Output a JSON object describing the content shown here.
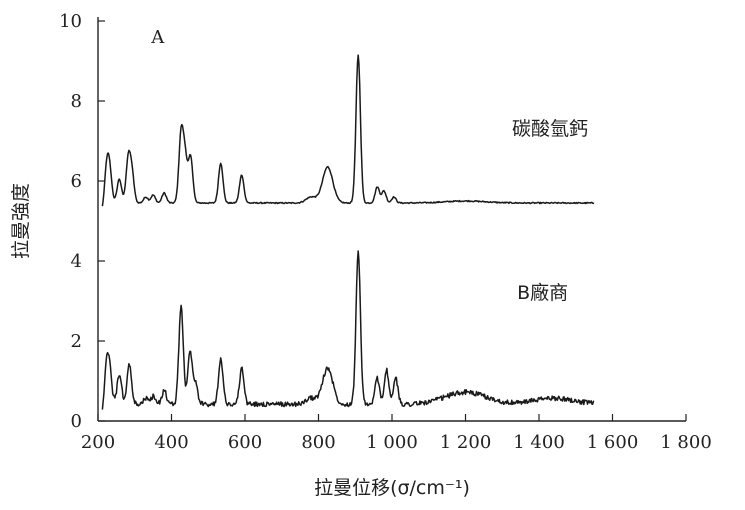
{
  "chart_data": {
    "type": "line",
    "panel_label": "A",
    "xlabel": "拉曼位移(σ/cm⁻¹)",
    "ylabel": "拉曼強度",
    "xlim": [
      200,
      1800
    ],
    "ylim": [
      0,
      10
    ],
    "x_tick_labels": [
      "200",
      "400",
      "600",
      "800",
      "1 000",
      "1 200",
      "1 400",
      "1 600",
      "1 800"
    ],
    "x_tick_values": [
      200,
      400,
      600,
      800,
      1000,
      1200,
      1400,
      1600,
      1800
    ],
    "y_ticks": [
      0,
      2,
      4,
      6,
      8,
      10
    ],
    "series": [
      {
        "name": "碳酸氫鈣",
        "baseline": 5.45,
        "peaks": [
          {
            "x": 224,
            "h": 0.85
          },
          {
            "x": 232,
            "h": 0.7
          },
          {
            "x": 258,
            "h": 0.6
          },
          {
            "x": 282,
            "h": 1.05
          },
          {
            "x": 292,
            "h": 0.75
          },
          {
            "x": 330,
            "h": 0.15
          },
          {
            "x": 350,
            "h": 0.2
          },
          {
            "x": 380,
            "h": 0.25
          },
          {
            "x": 426,
            "h": 1.7
          },
          {
            "x": 437,
            "h": 1.1
          },
          {
            "x": 452,
            "h": 1.15
          },
          {
            "x": 534,
            "h": 1.0
          },
          {
            "x": 591,
            "h": 0.7
          },
          {
            "x": 780,
            "h": 0.15
          },
          {
            "x": 825,
            "h": 0.9
          },
          {
            "x": 908,
            "h": 3.7
          },
          {
            "x": 960,
            "h": 0.4
          },
          {
            "x": 978,
            "h": 0.3
          },
          {
            "x": 1005,
            "h": 0.15
          },
          {
            "x": 1200,
            "h": 0.05
          }
        ]
      },
      {
        "name": "B廠商",
        "baseline": 0.42,
        "peaks": [
          {
            "x": 224,
            "h": 0.9
          },
          {
            "x": 232,
            "h": 0.7
          },
          {
            "x": 258,
            "h": 0.75
          },
          {
            "x": 285,
            "h": 1.0
          },
          {
            "x": 330,
            "h": 0.15
          },
          {
            "x": 350,
            "h": 0.2
          },
          {
            "x": 380,
            "h": 0.35
          },
          {
            "x": 426,
            "h": 2.45
          },
          {
            "x": 450,
            "h": 1.3
          },
          {
            "x": 465,
            "h": 0.55
          },
          {
            "x": 534,
            "h": 1.15
          },
          {
            "x": 591,
            "h": 0.9
          },
          {
            "x": 780,
            "h": 0.15
          },
          {
            "x": 825,
            "h": 0.9
          },
          {
            "x": 908,
            "h": 3.8
          },
          {
            "x": 960,
            "h": 0.65
          },
          {
            "x": 985,
            "h": 0.85
          },
          {
            "x": 1010,
            "h": 0.65
          },
          {
            "x": 1200,
            "h": 0.3
          },
          {
            "x": 1440,
            "h": 0.15
          }
        ]
      }
    ],
    "annotations": [
      {
        "text": "碳酸氫鈣",
        "x": 1430,
        "y": 7.15
      },
      {
        "text": "B廠商",
        "x": 1410,
        "y": 3.05
      }
    ]
  }
}
